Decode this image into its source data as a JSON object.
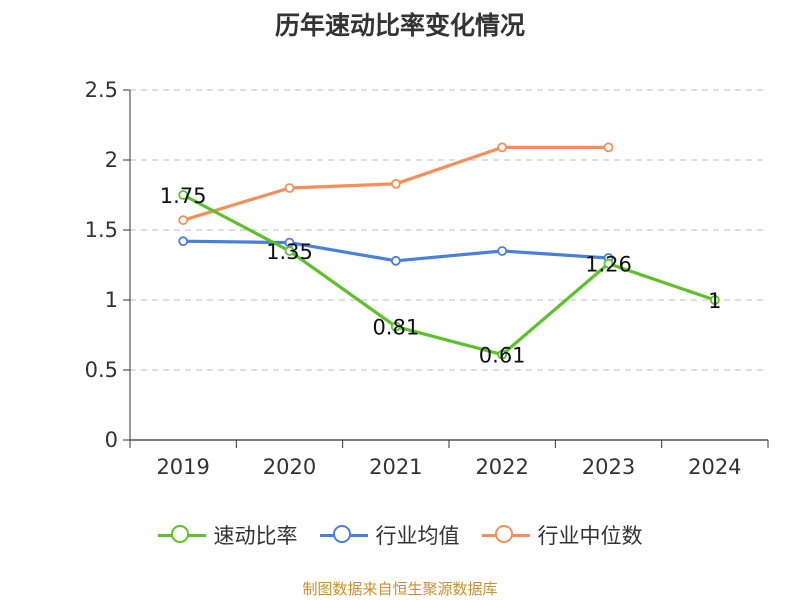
{
  "chart_data": {
    "type": "line",
    "title": "历年速动比率变化情况",
    "categories": [
      "2019",
      "2020",
      "2021",
      "2022",
      "2023",
      "2024"
    ],
    "ylim": [
      0,
      2.5
    ],
    "yticks": [
      "0",
      "0.5",
      "1",
      "1.5",
      "2",
      "2.5"
    ],
    "grid": true,
    "legend_position": "bottom",
    "series": [
      {
        "name": "速动比率",
        "color": "#5cc12a",
        "values": [
          1.75,
          1.35,
          0.81,
          0.61,
          1.26,
          1
        ],
        "labels": [
          "1.75",
          "1.35",
          "0.81",
          "0.61",
          "1.26",
          "1"
        ]
      },
      {
        "name": "行业均值",
        "color": "#4a7fdb",
        "values": [
          1.42,
          1.41,
          1.28,
          1.35,
          1.3,
          null
        ]
      },
      {
        "name": "行业中位数",
        "color": "#f58f5a",
        "values": [
          1.57,
          1.8,
          1.83,
          2.09,
          2.09,
          null
        ]
      }
    ]
  },
  "source_note": "制图数据来自恒生聚源数据库"
}
